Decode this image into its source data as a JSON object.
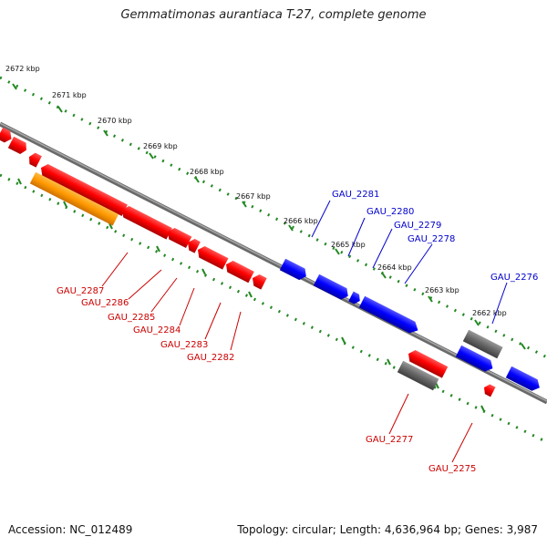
{
  "title": "Gemmatimonas aurantiaca T-27, complete genome",
  "footer": {
    "accession": "Accession: NC_012489",
    "summary": "Topology: circular; Length: 4,636,964 bp; Genes: 3,987"
  },
  "colors": {
    "forward_gene": "#0000ff",
    "reverse_gene": "#ff0000",
    "other_feature": "#666666",
    "highlight_feature": "#ff9900",
    "backbone": "#888888",
    "ticks": "#228822",
    "forward_label": "#0000cc",
    "reverse_label": "#cc0000"
  },
  "scale_labels": [
    "2672 kbp",
    "2671 kbp",
    "2670 kbp",
    "2669 kbp",
    "2668 kbp",
    "2667 kbp",
    "2666 kbp",
    "2665 kbp",
    "2664 kbp",
    "2663 kbp",
    "2662 kbp"
  ],
  "genes_forward": [
    "GAU_2281",
    "GAU_2280",
    "GAU_2279",
    "GAU_2278",
    "GAU_2276"
  ],
  "genes_reverse": [
    "GAU_2287",
    "GAU_2286",
    "GAU_2285",
    "GAU_2284",
    "GAU_2283",
    "GAU_2282",
    "GAU_2277",
    "GAU_2275"
  ]
}
